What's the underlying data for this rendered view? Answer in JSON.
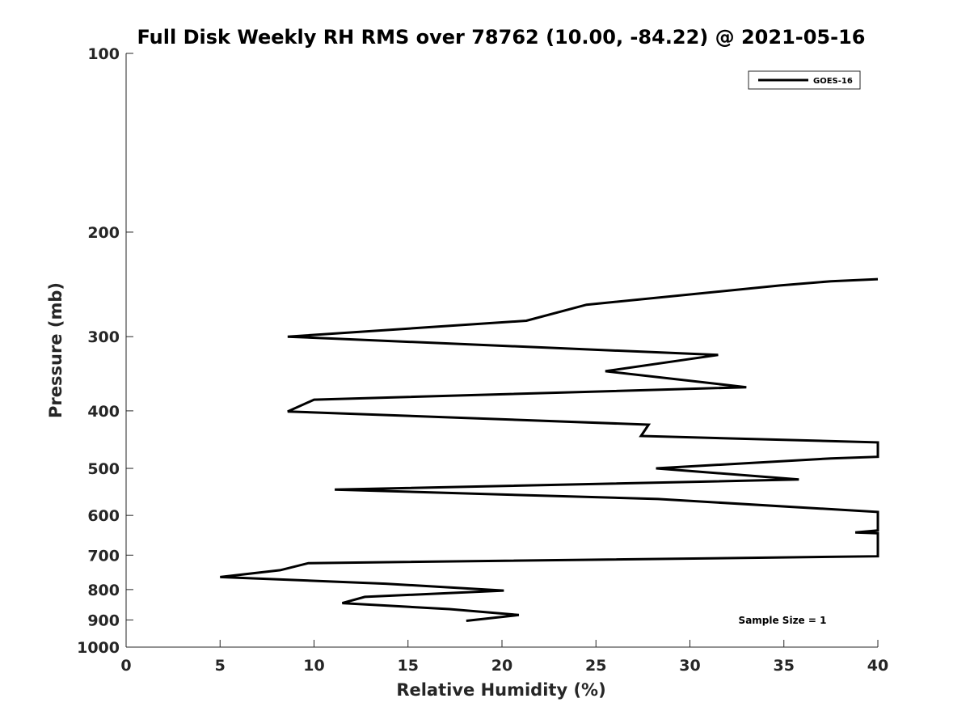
{
  "chart_data": {
    "type": "line",
    "title": "Full Disk Weekly RH RMS over 78762 (10.00, -84.22) @ 2021-05-16",
    "xlabel": "Relative Humidity (%)",
    "ylabel": "Pressure (mb)",
    "xlim": [
      0,
      40
    ],
    "ylim": [
      100,
      1000
    ],
    "y_scale": "log",
    "y_reversed": true,
    "grid": false,
    "legend_position": "top-right",
    "x_ticks": [
      0,
      5,
      10,
      15,
      20,
      25,
      30,
      35,
      40
    ],
    "y_ticks": [
      100,
      200,
      300,
      400,
      500,
      600,
      700,
      800,
      900,
      1000
    ],
    "annotation": "Sample Size = 1",
    "series": [
      {
        "name": "GOES-16",
        "color": "#000000",
        "points": [
          [
            40.0,
            240
          ],
          [
            37.5,
            242
          ],
          [
            34.8,
            246
          ],
          [
            24.5,
            265
          ],
          [
            21.3,
            282
          ],
          [
            8.6,
            300
          ],
          [
            31.5,
            322
          ],
          [
            25.5,
            343
          ],
          [
            33.0,
            365
          ],
          [
            10.0,
            383
          ],
          [
            8.6,
            401
          ],
          [
            27.8,
            422
          ],
          [
            27.4,
            441
          ],
          [
            40.0,
            452
          ],
          [
            40.0,
            478
          ],
          [
            37.5,
            481
          ],
          [
            28.2,
            500
          ],
          [
            35.8,
            522
          ],
          [
            11.1,
            543
          ],
          [
            28.3,
            563
          ],
          [
            40.0,
            592
          ],
          [
            40.0,
            636
          ],
          [
            38.8,
            641
          ],
          [
            40.0,
            643
          ],
          [
            40.0,
            703
          ],
          [
            9.7,
            722
          ],
          [
            8.2,
            742
          ],
          [
            5.0,
            762
          ],
          [
            13.8,
            782
          ],
          [
            20.1,
            803
          ],
          [
            12.7,
            823
          ],
          [
            11.5,
            843
          ],
          [
            17.2,
            863
          ],
          [
            20.9,
            883
          ],
          [
            18.1,
            903
          ]
        ]
      }
    ]
  }
}
